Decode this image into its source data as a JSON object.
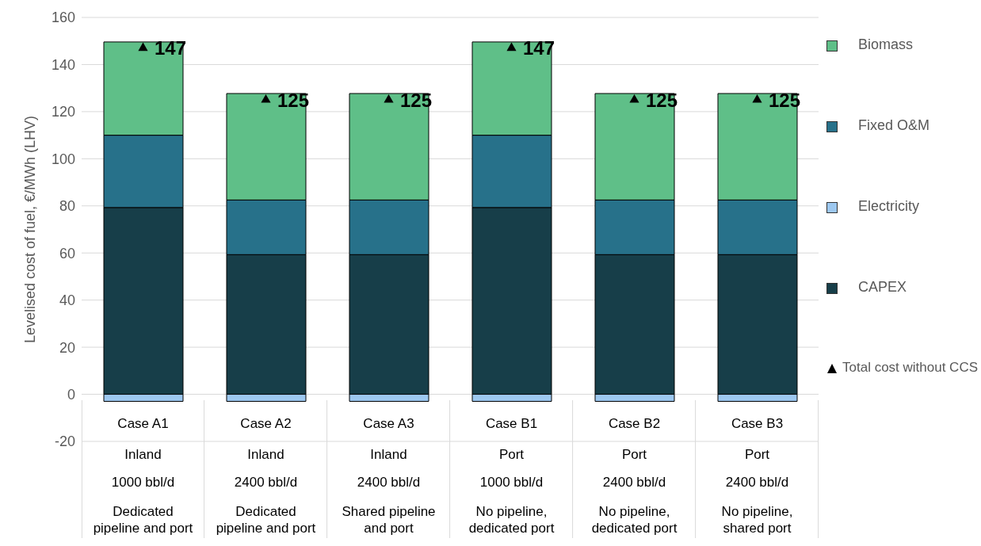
{
  "chart_data": {
    "type": "bar",
    "stacked": true,
    "ylabel": "Levelised cost of fuel, €/MWh (LHV)",
    "categories": [
      "Case A1\nInland\n1000 bbl/d\nDedicated pipeline and port",
      "Case A2\nInland\n2400 bbl/d\nDedicated pipeline and port",
      "Case A3\nInland\n2400 bbl/d\nShared pipeline and port",
      "Case B1\nPort\n1000 bbl/d\nNo pipeline, dedicated port",
      "Case B2\nPort\n2400 bbl/d\nNo pipeline, dedicated port",
      "Case B3\nPort\n2400 bbl/d\nNo pipeline, shared port"
    ],
    "series": [
      {
        "name": "CAPEX",
        "color": "#173e49",
        "values": [
          79.3,
          59.3,
          59.3,
          79.3,
          59.3,
          59.3
        ]
      },
      {
        "name": "Electricity",
        "color": "#9dc8f0",
        "values": [
          -3,
          -3,
          -3,
          -3,
          -3,
          -3
        ]
      },
      {
        "name": "Fixed O&M",
        "color": "#27718a",
        "values": [
          30.7,
          23.2,
          23.2,
          30.7,
          23.2,
          23.2
        ]
      },
      {
        "name": "Biomass",
        "color": "#5fbf88",
        "values": [
          39.6,
          45.2,
          45.2,
          39.6,
          45.2,
          45.2
        ]
      },
      {
        "name": "Total cost without CCS",
        "type": "scatter",
        "marker": "triangle",
        "color": "#000000",
        "data_labels": true,
        "values": [
          147,
          125,
          125,
          147,
          125,
          125
        ]
      }
    ],
    "ylim": [
      -20,
      160
    ],
    "yticks": [
      -20,
      0,
      20,
      40,
      60,
      80,
      100,
      120,
      140,
      160
    ],
    "grid": "y",
    "legend": "right"
  }
}
